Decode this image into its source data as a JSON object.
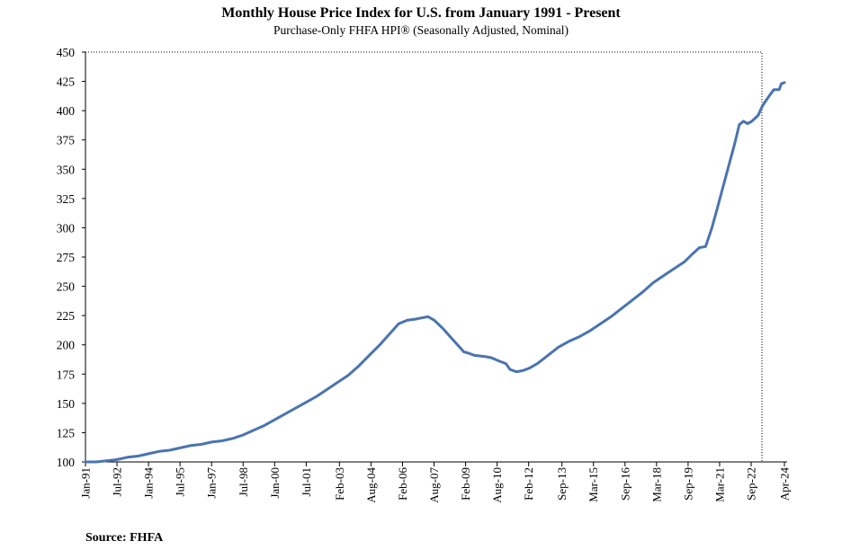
{
  "chart_data": {
    "type": "line",
    "title": "Monthly House Price Index for U.S. from January 1991 - Present",
    "subtitle": "Purchase-Only FHFA HPI® (Seasonally Adjusted, Nominal)",
    "xlabel": "",
    "ylabel": "",
    "ylim": [
      100,
      450
    ],
    "yticks": [
      100,
      125,
      150,
      175,
      200,
      225,
      250,
      275,
      300,
      325,
      350,
      375,
      400,
      425,
      450
    ],
    "xrange": [
      1991.0,
      2024.25
    ],
    "xticks": [
      {
        "label": "Jan-91",
        "t": 1991.0
      },
      {
        "label": "Jul-92",
        "t": 1992.5
      },
      {
        "label": "Jan-94",
        "t": 1994.0
      },
      {
        "label": "Jul-95",
        "t": 1995.5
      },
      {
        "label": "Jan-97",
        "t": 1997.0
      },
      {
        "label": "Jul-98",
        "t": 1998.5
      },
      {
        "label": "Jan-00",
        "t": 2000.0
      },
      {
        "label": "Jul-01",
        "t": 2001.5
      },
      {
        "label": "Feb-03",
        "t": 2003.083
      },
      {
        "label": "Aug-04",
        "t": 2004.583
      },
      {
        "label": "Feb-06",
        "t": 2006.083
      },
      {
        "label": "Aug-07",
        "t": 2007.583
      },
      {
        "label": "Feb-09",
        "t": 2009.083
      },
      {
        "label": "Aug-10",
        "t": 2010.583
      },
      {
        "label": "Feb-12",
        "t": 2012.083
      },
      {
        "label": "Sep-13",
        "t": 2013.667
      },
      {
        "label": "Mar-15",
        "t": 2015.167
      },
      {
        "label": "Sep-16",
        "t": 2016.667
      },
      {
        "label": "Mar-18",
        "t": 2018.167
      },
      {
        "label": "Sep-19",
        "t": 2019.667
      },
      {
        "label": "Mar-21",
        "t": 2021.167
      },
      {
        "label": "Sep-22",
        "t": 2022.667
      },
      {
        "label": "Apr-24",
        "t": 2024.25
      }
    ],
    "grid": false,
    "color": "#4A74B0",
    "series": [
      {
        "name": "Purchase-Only FHFA HPI (SA, Nominal)",
        "x": [
          1991.0,
          1991.5,
          1992.0,
          1992.5,
          1993.0,
          1993.5,
          1994.0,
          1994.5,
          1995.0,
          1995.5,
          1996.0,
          1996.5,
          1997.0,
          1997.5,
          1998.0,
          1998.5,
          1999.0,
          1999.5,
          2000.0,
          2000.5,
          2001.0,
          2001.5,
          2002.0,
          2002.5,
          2003.0,
          2003.5,
          2004.0,
          2004.5,
          2005.0,
          2005.5,
          2005.9,
          2006.3,
          2006.7,
          2007.0,
          2007.3,
          2007.6,
          2008.0,
          2008.5,
          2009.0,
          2009.2,
          2009.5,
          2010.0,
          2010.3,
          2010.7,
          2011.0,
          2011.2,
          2011.5,
          2011.8,
          2012.1,
          2012.5,
          2013.0,
          2013.5,
          2014.0,
          2014.5,
          2015.0,
          2015.5,
          2016.0,
          2016.5,
          2017.0,
          2017.5,
          2018.0,
          2018.5,
          2019.0,
          2019.5,
          2019.9,
          2020.2,
          2020.5,
          2020.8,
          2021.0,
          2021.3,
          2021.6,
          2021.9,
          2022.1,
          2022.3,
          2022.5,
          2022.7,
          2023.0,
          2023.2,
          2023.5,
          2023.75,
          2024.0,
          2024.1,
          2024.25
        ],
        "values": [
          100,
          100,
          101,
          102,
          104,
          105,
          107,
          109,
          110,
          112,
          114,
          115,
          117,
          118,
          120,
          123,
          127,
          131,
          136,
          141,
          146,
          151,
          156,
          162,
          168,
          174,
          182,
          191,
          200,
          210,
          218,
          221,
          222,
          223,
          224,
          221,
          214,
          204,
          194,
          193,
          191,
          190,
          189,
          186,
          184,
          179,
          177,
          178,
          180,
          184,
          191,
          198,
          203,
          207,
          212,
          218,
          224,
          231,
          238,
          245,
          253,
          259,
          265,
          271,
          278,
          283,
          284,
          300,
          313,
          333,
          353,
          373,
          388,
          391,
          389,
          391,
          396,
          404,
          412,
          418,
          418,
          423,
          424
        ]
      }
    ]
  },
  "source": "Source: FHFA"
}
